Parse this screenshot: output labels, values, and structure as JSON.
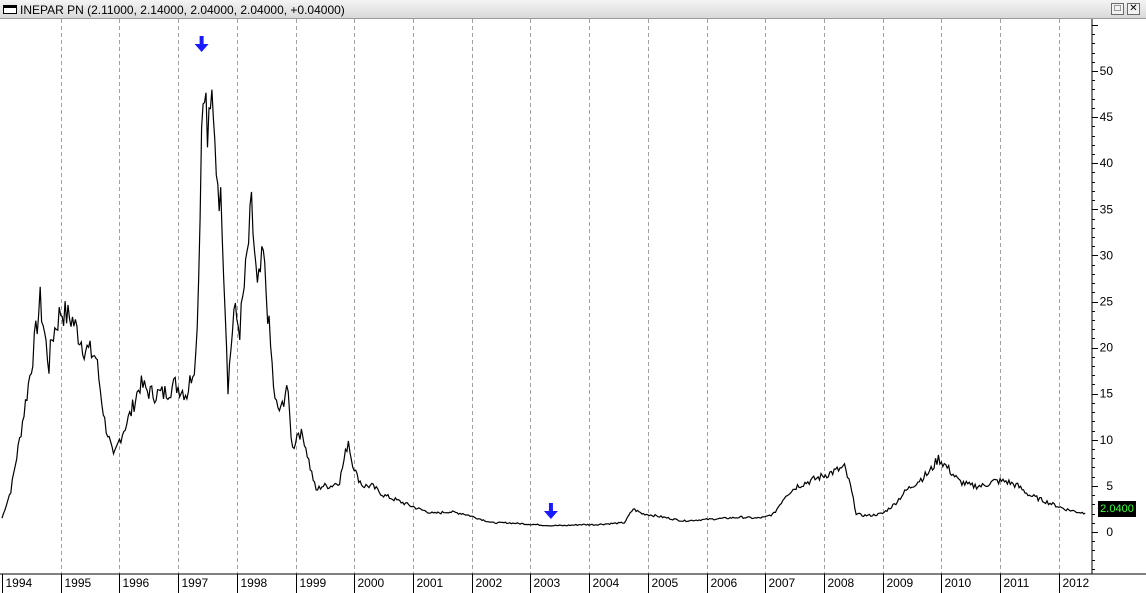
{
  "window": {
    "title": "INEPAR PN (2.11000, 2.14000, 2.04000, 2.04000, +0.04000)",
    "restore_glyph": "□",
    "close_glyph": "✕"
  },
  "chart_data": {
    "type": "line",
    "title": "INEPAR PN (2.11000, 2.14000, 2.04000, 2.04000, +0.04000)",
    "xlabel": "",
    "ylabel": "",
    "xlim": [
      1994.0,
      2012.6
    ],
    "ylim": [
      -5,
      55
    ],
    "x_ticks": [
      "1994",
      "1995",
      "1996",
      "1997",
      "1998",
      "1999",
      "2000",
      "2001",
      "2002",
      "2003",
      "2004",
      "2005",
      "2006",
      "2007",
      "2008",
      "2009",
      "2010",
      "2011",
      "2012"
    ],
    "y_ticks": [
      0,
      5,
      10,
      15,
      20,
      25,
      30,
      35,
      40,
      45,
      50
    ],
    "grid": "vertical dashed at year starts",
    "line_color": "#000000",
    "series": [
      {
        "name": "",
        "x": [
          1994.0,
          1994.15,
          1994.3,
          1994.5,
          1994.65,
          1994.8,
          1994.85,
          1995.0,
          1995.2,
          1995.4,
          1995.6,
          1995.75,
          1995.9,
          1996.0,
          1996.2,
          1996.35,
          1996.55,
          1996.75,
          1996.95,
          1997.15,
          1997.3,
          1997.35,
          1997.4,
          1997.45,
          1997.5,
          1997.55,
          1997.65,
          1997.75,
          1997.85,
          1997.95,
          1998.05,
          1998.15,
          1998.25,
          1998.35,
          1998.45,
          1998.55,
          1998.65,
          1998.75,
          1998.85,
          1998.95,
          1999.05,
          1999.15,
          1999.25,
          1999.35,
          1999.45,
          1999.6,
          1999.75,
          1999.9,
          1999.95,
          2000.05,
          2000.15,
          2000.3,
          2000.5,
          2000.7,
          2000.9,
          2001.1,
          2001.35,
          2001.6,
          2001.85,
          2002.1,
          2002.35,
          2002.6,
          2002.85,
          2003.1,
          2003.35,
          2003.6,
          2003.85,
          2004.1,
          2004.35,
          2004.6,
          2004.75,
          2004.9,
          2005.1,
          2005.35,
          2005.6,
          2005.85,
          2006.1,
          2006.35,
          2006.6,
          2006.85,
          2007.0,
          2007.15,
          2007.35,
          2007.55,
          2007.75,
          2007.95,
          2008.15,
          2008.35,
          2008.45,
          2008.55,
          2008.65,
          2008.8,
          2009.0,
          2009.2,
          2009.4,
          2009.6,
          2009.8,
          2009.95,
          2010.1,
          2010.3,
          2010.5,
          2010.7,
          2010.9,
          2011.1,
          2011.3,
          2011.5,
          2011.7,
          2011.9,
          2012.1,
          2012.3,
          2012.45
        ],
        "values": [
          1.5,
          4.5,
          10,
          18,
          25,
          18,
          21,
          24,
          23,
          20,
          19,
          12,
          8,
          10,
          13,
          16,
          15,
          15,
          16,
          15,
          19,
          28,
          44,
          50,
          42,
          47,
          40,
          34,
          16,
          24,
          22,
          28,
          35,
          26,
          30,
          22,
          14,
          13,
          16,
          9,
          11,
          10,
          7,
          4.5,
          5,
          5,
          5.5,
          10,
          8,
          6,
          5,
          5,
          4,
          3.5,
          3,
          2.5,
          2,
          2.2,
          2,
          1.5,
          1,
          1,
          0.9,
          0.8,
          0.7,
          0.7,
          0.8,
          0.8,
          0.9,
          1,
          2.5,
          2,
          1.8,
          1.5,
          1.2,
          1.3,
          1.4,
          1.5,
          1.6,
          1.5,
          1.6,
          2,
          4,
          5,
          5.5,
          6,
          6.5,
          7,
          5,
          2,
          1.8,
          1.8,
          2,
          3,
          4.5,
          5.5,
          6.5,
          8,
          7,
          5.5,
          5,
          5,
          5.5,
          5.5,
          5,
          4,
          3.5,
          3,
          2.5,
          2.2,
          2.04
        ]
      }
    ],
    "annotations": [
      {
        "type": "down-arrow",
        "x": 1997.4,
        "color": "#1a1aff"
      },
      {
        "type": "down-arrow",
        "x": 2003.35,
        "color": "#1a1aff"
      }
    ],
    "last_value_label": "2.0400"
  }
}
